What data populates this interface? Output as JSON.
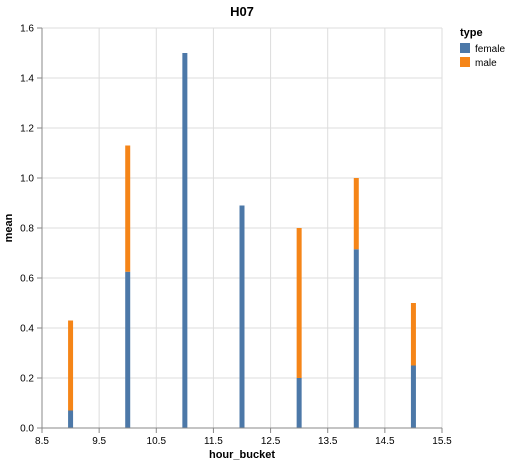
{
  "chart_data": {
    "type": "bar",
    "stacked": true,
    "title": "H07",
    "xlabel": "hour_bucket",
    "ylabel": "mean",
    "xlim": [
      8.5,
      15.5
    ],
    "ylim": [
      0,
      1.6
    ],
    "x_ticks": [
      "8.5",
      "9.5",
      "10.5",
      "11.5",
      "12.5",
      "13.5",
      "14.5",
      "15.5"
    ],
    "y_ticks": [
      "0.0",
      "0.2",
      "0.4",
      "0.6",
      "0.8",
      "1.0",
      "1.2",
      "1.4",
      "1.6"
    ],
    "grid": true,
    "legend_title": "type",
    "legend_position": "top-right",
    "x": [
      9,
      10,
      11,
      12,
      13,
      14,
      15
    ],
    "series": [
      {
        "name": "female",
        "color": "#4c78a8",
        "values": [
          0.07,
          0.625,
          1.5,
          0.89,
          0.2,
          0.715,
          0.25
        ]
      },
      {
        "name": "male",
        "color": "#f58518",
        "values": [
          0.36,
          0.505,
          0.0,
          0.0,
          0.6,
          0.285,
          0.25
        ]
      }
    ]
  }
}
